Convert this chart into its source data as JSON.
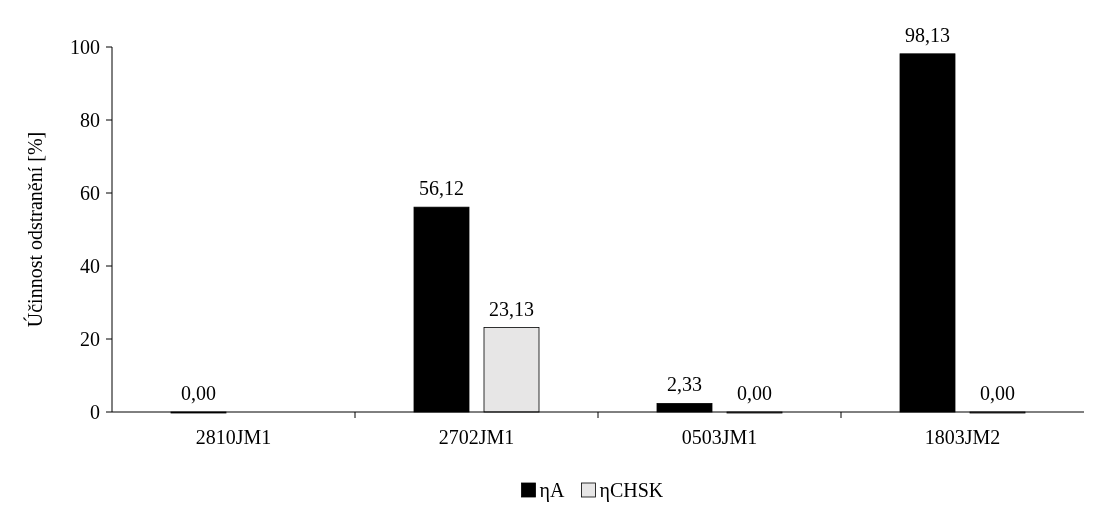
{
  "chart_data": {
    "type": "bar",
    "ylabel": "Účinnost odstranění [%]",
    "categories": [
      "2810JM1",
      "2702JM1",
      "0503JM1",
      "1803JM2"
    ],
    "series": [
      {
        "name": "ηA",
        "color": "#000000",
        "values": [
          0,
          56.12,
          2.33,
          98.13
        ],
        "value_labels": [
          "0,00",
          "56,12",
          "2,33",
          "98,13"
        ]
      },
      {
        "name": "ηCHSK",
        "color": "#e7e6e6",
        "values": [
          null,
          23.13,
          0,
          0
        ],
        "value_labels": [
          null,
          "23,13",
          "0,00",
          "0,00"
        ]
      }
    ],
    "ylim": [
      0,
      100
    ],
    "yticks": [
      0,
      20,
      40,
      60,
      80,
      100
    ],
    "grid": false,
    "legend": "bottom"
  }
}
